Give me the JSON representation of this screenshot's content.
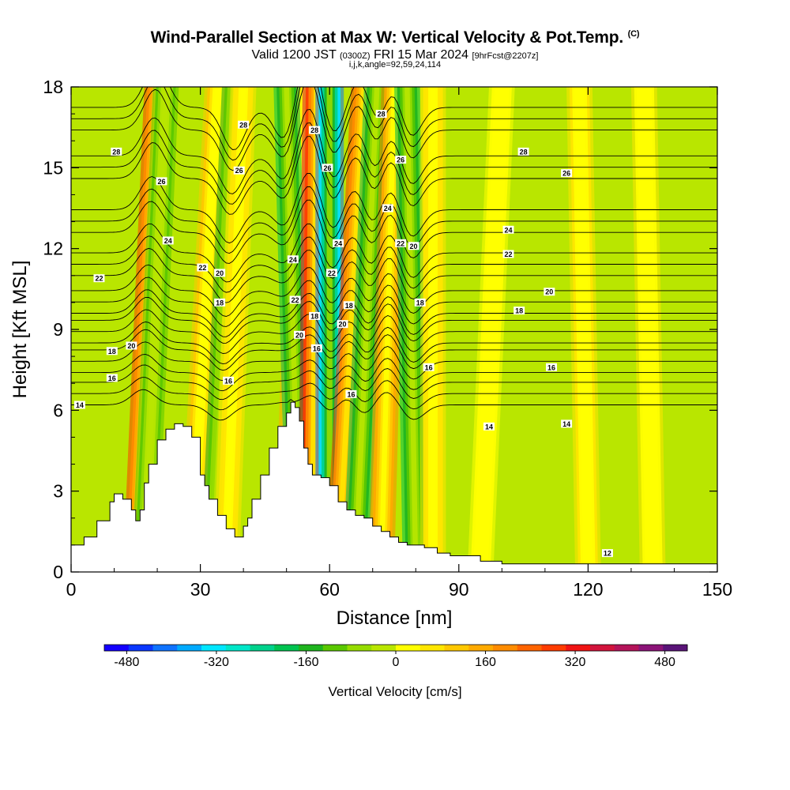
{
  "header": {
    "title": "Wind-Parallel Section at Max W: Vertical Velocity & Pot.Temp.",
    "copyright": "(C)",
    "valid_prefix": "Valid 1200 JST",
    "valid_utc": "(0300Z)",
    "valid_date": "FRI 15 Mar 2024",
    "forecast": "[9hrFcst@2207z]",
    "indices": "i,j,k,angle=92,59,24,114"
  },
  "colors": {
    "background_field": "#b9e600",
    "terrain": "#ffffff",
    "contour_line": "#000000"
  },
  "chart_data": {
    "type": "heatmap",
    "xlabel": "Distance [nm]",
    "ylabel": "Height [Kft MSL]",
    "xlim": [
      0,
      150
    ],
    "ylim": [
      0,
      18
    ],
    "x_ticks": [
      "0",
      "30",
      "60",
      "90",
      "120",
      "150"
    ],
    "y_ticks": [
      "0",
      "3",
      "6",
      "9",
      "12",
      "15",
      "18"
    ],
    "x_tick_values": [
      0,
      30,
      60,
      90,
      120,
      150
    ],
    "y_tick_values": [
      0,
      3,
      6,
      9,
      12,
      15,
      18
    ],
    "terrain_profile": {
      "x": [
        0,
        3,
        6,
        9,
        10,
        12,
        14,
        15,
        16,
        17,
        18,
        20,
        22,
        24,
        25,
        26,
        28,
        30,
        31,
        32,
        34,
        36,
        38,
        40,
        41,
        42,
        44,
        46,
        48,
        50,
        51,
        52,
        53,
        54,
        55,
        56,
        58,
        60,
        62,
        64,
        66,
        68,
        70,
        72,
        74,
        76,
        78,
        80,
        82,
        85,
        88,
        95,
        100,
        150
      ],
      "height": [
        1.0,
        1.3,
        1.9,
        2.6,
        2.9,
        2.7,
        2.3,
        1.9,
        2.3,
        3.3,
        4.0,
        4.9,
        5.3,
        5.5,
        5.5,
        5.4,
        5.0,
        3.6,
        3.2,
        2.7,
        2.1,
        1.6,
        1.3,
        1.7,
        2.0,
        2.7,
        3.6,
        4.6,
        5.4,
        5.9,
        6.3,
        6.1,
        5.6,
        4.6,
        4.0,
        3.6,
        3.5,
        3.2,
        2.6,
        2.3,
        2.1,
        2.0,
        1.7,
        1.5,
        1.3,
        1.1,
        1.0,
        1.0,
        0.9,
        0.7,
        0.6,
        0.4,
        0.3,
        0.3
      ]
    },
    "vertical_velocity_bands": [
      {
        "x_base": 15,
        "x_top": 20,
        "w": 260
      },
      {
        "x_base": 17,
        "x_top": 22,
        "w": -120
      },
      {
        "x_base": 28,
        "x_top": 34,
        "w": 120
      },
      {
        "x_base": 33,
        "x_top": 38,
        "w": -150
      },
      {
        "x_base": 36,
        "x_top": 40,
        "w": 80
      },
      {
        "x_base": 50,
        "x_top": 54,
        "w": 160
      },
      {
        "x_base": 53,
        "x_top": 50,
        "w": -200
      },
      {
        "x_base": 56,
        "x_top": 57,
        "w": 380
      },
      {
        "x_base": 60,
        "x_top": 60,
        "w": -400
      },
      {
        "x_base": 62,
        "x_top": 68,
        "w": 260
      },
      {
        "x_base": 66,
        "x_top": 71,
        "w": -180
      },
      {
        "x_base": 72,
        "x_top": 75,
        "w": 200
      },
      {
        "x_base": 80,
        "x_top": 78,
        "w": -200
      },
      {
        "x_base": 84,
        "x_top": 84,
        "w": 80
      },
      {
        "x_base": 95,
        "x_top": 100,
        "w": 40
      },
      {
        "x_base": 120,
        "x_top": 118,
        "w": 60
      },
      {
        "x_base": 135,
        "x_top": 133,
        "w": 50
      }
    ],
    "pot_temp_contours": [
      {
        "value": "14",
        "base_height": 6.2
      },
      {
        "value": "16",
        "base_height": 7.4
      },
      {
        "value": "18",
        "base_height": 8.5
      },
      {
        "value": "20",
        "base_height": 9.6
      },
      {
        "value": "22",
        "base_height": 11.0
      },
      {
        "value": "24",
        "base_height": 12.6
      },
      {
        "value": "26",
        "base_height": 14.6
      },
      {
        "value": "28",
        "base_height": 16.4
      }
    ],
    "contour_labels": [
      {
        "text": "14",
        "x": 2,
        "y": 6.2
      },
      {
        "text": "16",
        "x": 9.5,
        "y": 7.2
      },
      {
        "text": "18",
        "x": 9.5,
        "y": 8.2
      },
      {
        "text": "20",
        "x": 14,
        "y": 8.4
      },
      {
        "text": "22",
        "x": 6.5,
        "y": 10.9
      },
      {
        "text": "24",
        "x": 22.5,
        "y": 12.3
      },
      {
        "text": "26",
        "x": 21,
        "y": 14.5
      },
      {
        "text": "28",
        "x": 10.5,
        "y": 15.6
      },
      {
        "text": "16",
        "x": 36.5,
        "y": 7.1
      },
      {
        "text": "18",
        "x": 34.5,
        "y": 10.0
      },
      {
        "text": "20",
        "x": 34.5,
        "y": 11.1
      },
      {
        "text": "22",
        "x": 30.5,
        "y": 11.3
      },
      {
        "text": "26",
        "x": 39,
        "y": 14.9
      },
      {
        "text": "28",
        "x": 40,
        "y": 16.6
      },
      {
        "text": "24",
        "x": 51.5,
        "y": 11.6
      },
      {
        "text": "22",
        "x": 52,
        "y": 10.1
      },
      {
        "text": "20",
        "x": 53,
        "y": 8.8
      },
      {
        "text": "18",
        "x": 56.5,
        "y": 9.5
      },
      {
        "text": "16",
        "x": 57,
        "y": 8.3
      },
      {
        "text": "28",
        "x": 56.5,
        "y": 16.4
      },
      {
        "text": "26",
        "x": 59.5,
        "y": 15.0
      },
      {
        "text": "24",
        "x": 62,
        "y": 12.2
      },
      {
        "text": "22",
        "x": 60.5,
        "y": 11.1
      },
      {
        "text": "20",
        "x": 63,
        "y": 9.2
      },
      {
        "text": "18",
        "x": 64.5,
        "y": 9.9
      },
      {
        "text": "16",
        "x": 65,
        "y": 6.6
      },
      {
        "text": "28",
        "x": 72,
        "y": 17.0
      },
      {
        "text": "26",
        "x": 76.5,
        "y": 15.3
      },
      {
        "text": "24",
        "x": 73.5,
        "y": 13.5
      },
      {
        "text": "22",
        "x": 76.5,
        "y": 12.2
      },
      {
        "text": "20",
        "x": 79.5,
        "y": 12.1
      },
      {
        "text": "18",
        "x": 81,
        "y": 10.0
      },
      {
        "text": "16",
        "x": 83,
        "y": 7.6
      },
      {
        "text": "28",
        "x": 105,
        "y": 15.6
      },
      {
        "text": "26",
        "x": 115,
        "y": 14.8
      },
      {
        "text": "24",
        "x": 101.5,
        "y": 12.7
      },
      {
        "text": "22",
        "x": 101.5,
        "y": 11.8
      },
      {
        "text": "20",
        "x": 111,
        "y": 10.4
      },
      {
        "text": "18",
        "x": 104,
        "y": 9.7
      },
      {
        "text": "16",
        "x": 111.5,
        "y": 7.6
      },
      {
        "text": "14",
        "x": 97,
        "y": 5.4
      },
      {
        "text": "14",
        "x": 115,
        "y": 5.5
      },
      {
        "text": "12",
        "x": 124.5,
        "y": 0.7
      }
    ]
  },
  "colorbar": {
    "title": "Vertical Velocity [cm/s]",
    "tick_labels": [
      "-480",
      "-320",
      "-160",
      "0",
      "160",
      "320",
      "480"
    ],
    "tick_values": [
      -480,
      -320,
      -160,
      0,
      160,
      320,
      480
    ],
    "min": -520,
    "max": 520,
    "colors": [
      "#1400ff",
      "#0a37ff",
      "#0f73ff",
      "#00aaff",
      "#00e6ff",
      "#00e6c8",
      "#00d28c",
      "#00c350",
      "#1eb41e",
      "#5ac800",
      "#96dc00",
      "#b9e600",
      "#ffff00",
      "#ffe600",
      "#ffc800",
      "#ffaa00",
      "#ff8c00",
      "#ff6400",
      "#ff3c00",
      "#f01414",
      "#d2143c",
      "#b4145a",
      "#8c1478",
      "#5a1478"
    ]
  }
}
